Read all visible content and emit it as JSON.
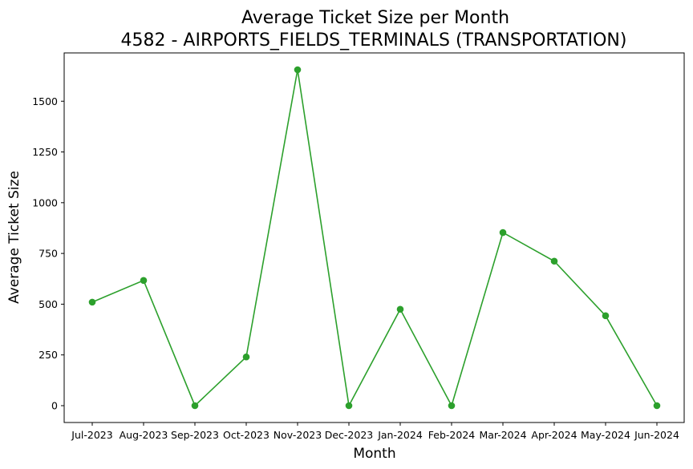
{
  "chart_data": {
    "type": "line",
    "title": "Average Ticket Size per Month",
    "subtitle": "4582 - AIRPORTS_FIELDS_TERMINALS (TRANSPORTATION)",
    "xlabel": "Month",
    "ylabel": "Average Ticket Size",
    "categories": [
      "Jul-2023",
      "Aug-2023",
      "Sep-2023",
      "Oct-2023",
      "Nov-2023",
      "Dec-2023",
      "Jan-2024",
      "Feb-2024",
      "Mar-2024",
      "Apr-2024",
      "May-2024",
      "Jun-2024"
    ],
    "values": [
      510,
      617,
      0,
      240,
      1655,
      0,
      475,
      0,
      853,
      712,
      443,
      0
    ],
    "yticks": [
      0,
      250,
      500,
      750,
      1000,
      1250,
      1500
    ],
    "ylim": [
      -83,
      1738
    ],
    "grid": false,
    "color": "#2ca02c",
    "marker": "circle"
  }
}
